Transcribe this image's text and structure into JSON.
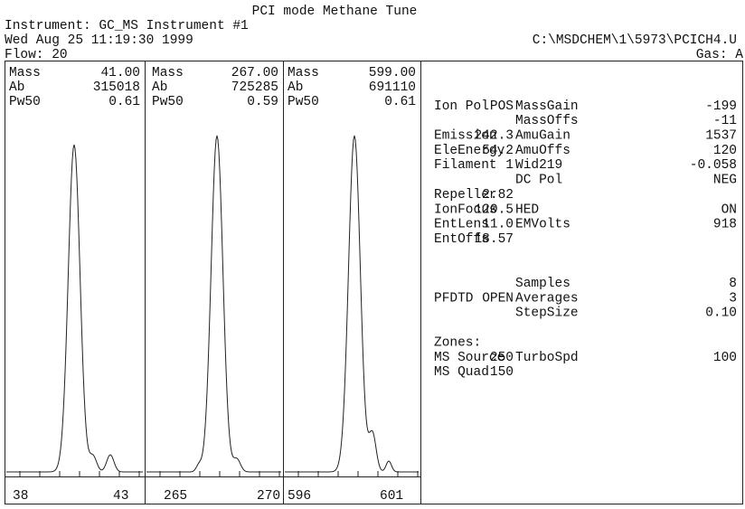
{
  "header": {
    "title": "PCI mode Methane Tune",
    "instrument": "Instrument: GC_MS Instrument #1",
    "datetime": "Wed Aug 25 11:19:30 1999",
    "path": "C:\\MSDCHEM\\1\\5973\\PCICH4.U",
    "flow": "Flow: 20",
    "gas": "Gas: A"
  },
  "field_labels": [
    "Mass",
    "Ab",
    "Pw50"
  ],
  "panels": [
    {
      "fields": [
        "41.00",
        "315018",
        "0.61"
      ],
      "ticks": [
        "38",
        "43"
      ]
    },
    {
      "fields": [
        "267.00",
        "725285",
        "0.59"
      ],
      "ticks": [
        "265",
        "270"
      ]
    },
    {
      "fields": [
        "599.00",
        "691110",
        "0.61"
      ],
      "ticks": [
        "596",
        "601"
      ]
    }
  ],
  "groups": [
    [
      {
        "left": {
          "label": "Ion Pol",
          "value": "POS"
        },
        "right": {
          "label": "MassGain",
          "value": "-199"
        }
      },
      {
        "right": {
          "label": "MassOffs",
          "value": "-11"
        }
      },
      {
        "left": {
          "label": "Emission",
          "value": "242.3"
        },
        "right": {
          "label": "AmuGain",
          "value": "1537"
        }
      },
      {
        "left": {
          "label": "EleEnergy",
          "value": "54.2"
        },
        "right": {
          "label": "AmuOffs",
          "value": "120"
        }
      },
      {
        "left": {
          "label": "Filament",
          "value": "1"
        },
        "right": {
          "label": "Wid219",
          "value": "-0.058"
        }
      },
      {
        "right": {
          "label": "DC Pol",
          "value": "NEG"
        }
      },
      {
        "left": {
          "label": "Repeller",
          "value": "2.82"
        }
      },
      {
        "left": {
          "label": "IonFocus",
          "value": "120.5"
        },
        "right": {
          "label": "HED",
          "value": "ON"
        }
      },
      {
        "left": {
          "label": "EntLens",
          "value": "11.0"
        },
        "right": {
          "label": "EMVolts",
          "value": "918"
        }
      },
      {
        "left": {
          "label": "EntOffs",
          "value": "18.57"
        }
      }
    ],
    [
      {
        "right": {
          "label": "Samples",
          "value": "8"
        }
      },
      {
        "left": {
          "label": "PFDTD",
          "value": "OPEN"
        },
        "right": {
          "label": "Averages",
          "value": "3"
        }
      },
      {
        "right": {
          "label": "StepSize",
          "value": "0.10"
        }
      }
    ],
    [
      {
        "left": {
          "label": "Zones:"
        }
      },
      {
        "left": {
          "label": "MS Source",
          "value": "250"
        },
        "right": {
          "label": "TurboSpd",
          "value": "100"
        }
      },
      {
        "left": {
          "label": "MS Quad",
          "value": "150"
        }
      }
    ]
  ]
}
